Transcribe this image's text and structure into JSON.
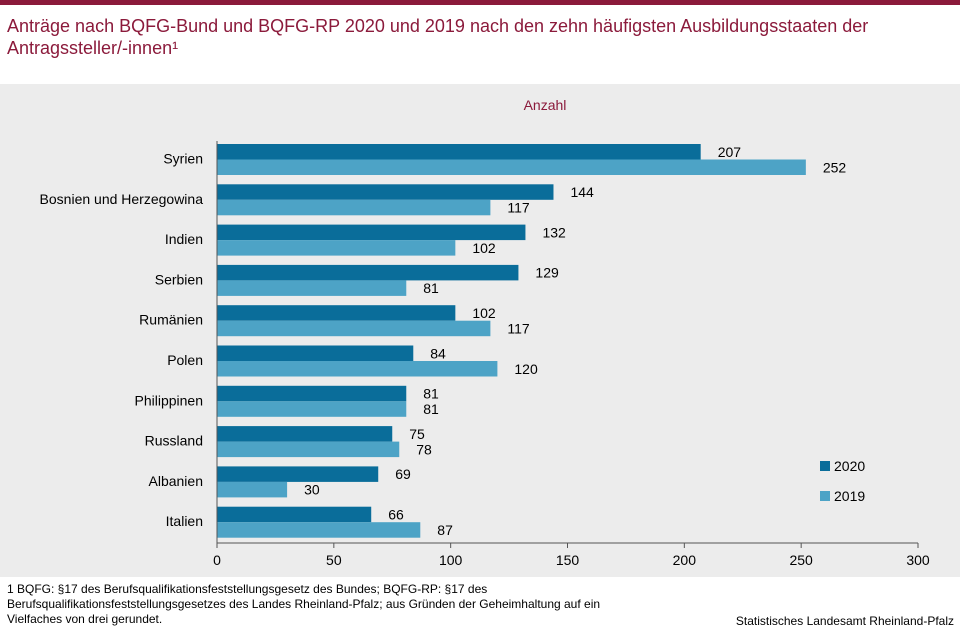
{
  "header": {
    "title": "Anträge nach BQFG-Bund und BQFG-RP 2020 und 2019 nach den zehn häufigsten Ausbildungsstaaten der Antragssteller/-innen¹"
  },
  "footer": {
    "footnote": "1  BQFG: §17 des Berufsqualifikationsfeststellungsgesetz  des Bundes;  BQFG-RP: §17 des Berufsqualifikationsfeststellungsgesetzes  des Landes Rheinland-Pfalz;  aus Gründen  der Geheimhaltung auf ein Vielfaches von drei gerundet.",
    "source": "Statistisches Landesamt Rheinland-Pfalz"
  },
  "colors": {
    "brand": "#8b1a3b",
    "panel_bg": "#ececec",
    "series_2020": "#0a6d9a",
    "series_2019": "#4da3c6"
  },
  "chart_data": {
    "type": "bar",
    "orientation": "horizontal",
    "unit_label": "Anzahl",
    "categories": [
      "Syrien",
      "Bosnien und Herzegowina",
      "Indien",
      "Serbien",
      "Rumänien",
      "Polen",
      "Philippinen",
      "Russland",
      "Albanien",
      "Italien"
    ],
    "series": [
      {
        "name": "2020",
        "color": "#0a6d9a",
        "values": [
          207,
          144,
          132,
          129,
          102,
          84,
          81,
          75,
          69,
          66
        ]
      },
      {
        "name": "2019",
        "color": "#4da3c6",
        "values": [
          252,
          117,
          102,
          81,
          117,
          120,
          81,
          78,
          30,
          87
        ]
      }
    ],
    "xlim": [
      0,
      300
    ],
    "xticks": [
      "0",
      "50",
      "100",
      "150",
      "200",
      "250",
      "300"
    ],
    "grid": false,
    "legend_position": "bottom-right",
    "data_labels": true
  }
}
